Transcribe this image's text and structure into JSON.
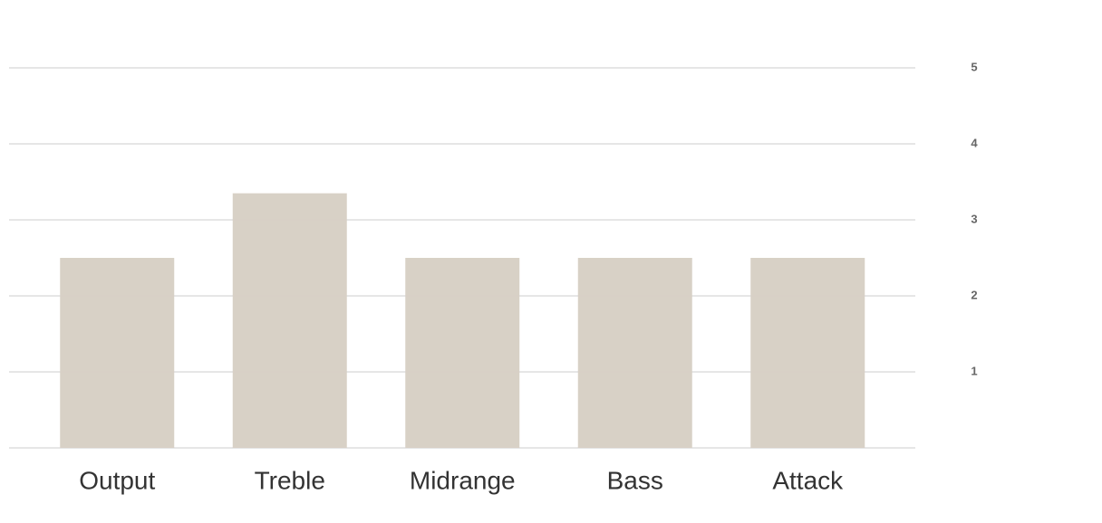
{
  "chart_data": {
    "type": "bar",
    "categories": [
      "Output",
      "Treble",
      "Midrange",
      "Bass",
      "Attack"
    ],
    "values": [
      2.5,
      3.35,
      2.5,
      2.5,
      2.5
    ],
    "color": "#d6cfc3",
    "ylim": [
      0,
      5
    ],
    "yticks": [
      1,
      2,
      3,
      4,
      5
    ],
    "grid": true
  }
}
